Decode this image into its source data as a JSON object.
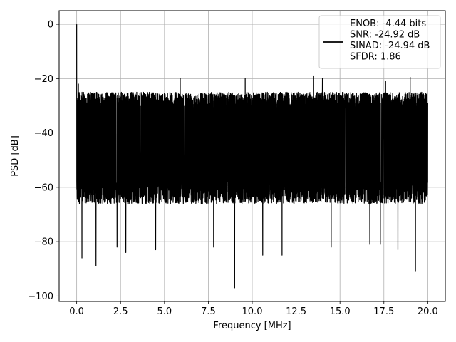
{
  "chart_data": {
    "type": "line",
    "xlabel": "Frequency [MHz]",
    "ylabel": "PSD [dB]",
    "xlim": [
      -1.0,
      21.0
    ],
    "ylim": [
      -102.0,
      5.0
    ],
    "x_ticks": [
      0.0,
      2.5,
      5.0,
      7.5,
      10.0,
      12.5,
      15.0,
      17.5,
      20.0
    ],
    "x_tick_labels": [
      "0.0",
      "2.5",
      "5.0",
      "7.5",
      "10.0",
      "12.5",
      "15.0",
      "17.5",
      "20.0"
    ],
    "y_ticks": [
      0,
      -20,
      -40,
      -60,
      -80,
      -100
    ],
    "y_tick_labels": [
      "0",
      "−20",
      "−40",
      "−60",
      "−80",
      "−100"
    ],
    "grid": true,
    "legend_position": "top-right",
    "legend_lines": [
      "ENOB: -4.44 bits",
      "SNR: -24.92 dB",
      "SINAD: -24.94 dB",
      "SFDR: 1.86"
    ],
    "series": [
      {
        "color": "#000000",
        "description": "dense noise-like PSD trace, bulk roughly -65 to -25 dB, spike to 0 dB at 0 MHz, spurs up to about -20 dB, dips down to about -97 dB",
        "x_range": [
          0.0,
          20.0
        ],
        "envelope_upper_db": -25,
        "envelope_lower_db": -66,
        "peaks": [
          {
            "x": 0.0,
            "y": 0.0
          },
          {
            "x": 0.1,
            "y": -22.0
          },
          {
            "x": 5.9,
            "y": -20.0
          },
          {
            "x": 9.6,
            "y": -20.0
          },
          {
            "x": 13.5,
            "y": -19.0
          },
          {
            "x": 14.0,
            "y": -20.0
          },
          {
            "x": 16.7,
            "y": -20.0
          },
          {
            "x": 17.6,
            "y": -21.0
          },
          {
            "x": 19.0,
            "y": -19.5
          }
        ],
        "dips": [
          {
            "x": 0.3,
            "y": -86.0
          },
          {
            "x": 1.1,
            "y": -89.0
          },
          {
            "x": 2.3,
            "y": -82.0
          },
          {
            "x": 2.8,
            "y": -84.0
          },
          {
            "x": 4.5,
            "y": -83.0
          },
          {
            "x": 7.8,
            "y": -82.0
          },
          {
            "x": 9.0,
            "y": -97.0
          },
          {
            "x": 10.6,
            "y": -85.0
          },
          {
            "x": 11.7,
            "y": -85.0
          },
          {
            "x": 14.5,
            "y": -82.0
          },
          {
            "x": 16.7,
            "y": -81.0
          },
          {
            "x": 17.3,
            "y": -81.0
          },
          {
            "x": 18.3,
            "y": -83.0
          },
          {
            "x": 19.3,
            "y": -91.0
          }
        ]
      }
    ]
  }
}
